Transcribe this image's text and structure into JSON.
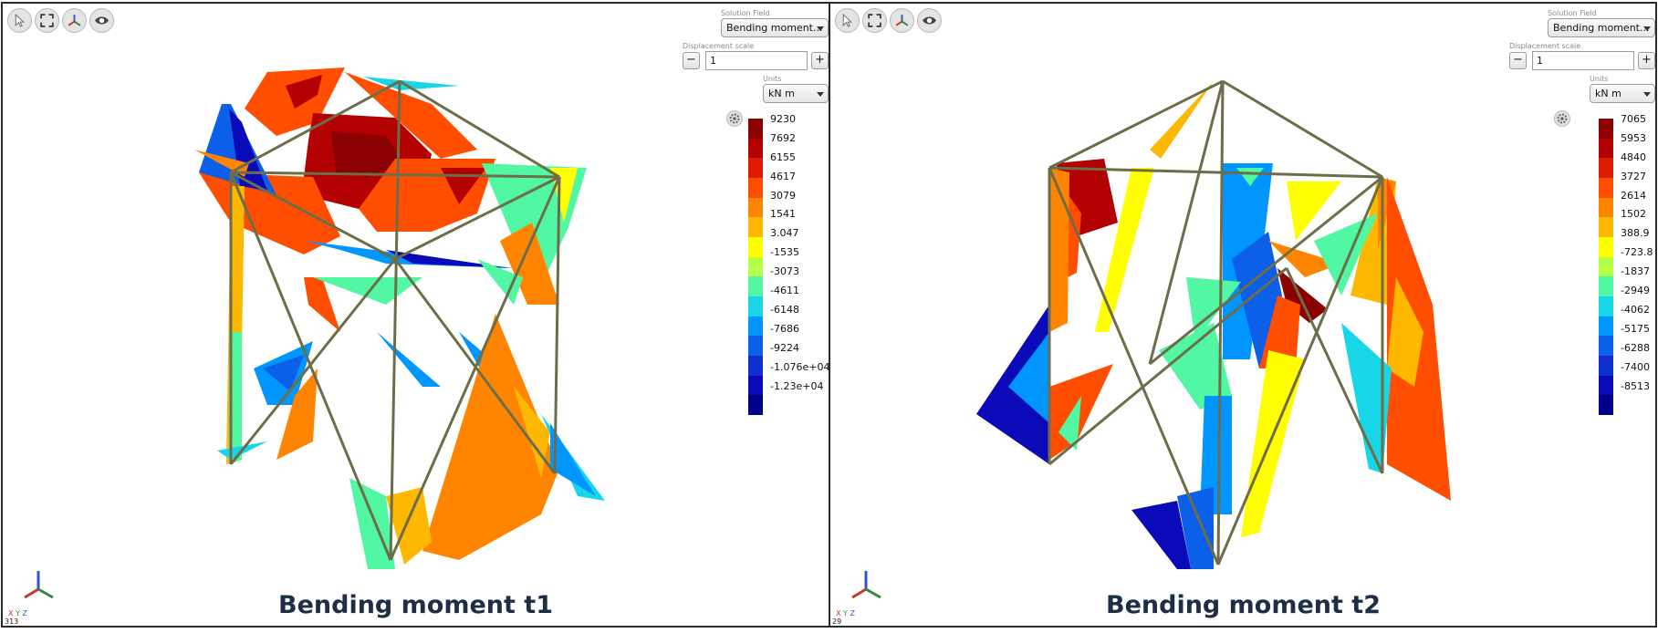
{
  "panes": [
    {
      "caption": "Bending moment t1",
      "solution_field_label": "Solution Field",
      "solution_field_value": "Bending moment...",
      "displacement_label": "Displacement scale",
      "displacement_value": "1",
      "units_label": "Units",
      "units_value": "kN m",
      "minus_label": "−",
      "plus_label": "+",
      "legend": [
        "9230",
        "7692",
        "6155",
        "4617",
        "3079",
        "1541",
        "3.047",
        "-1535",
        "-3073",
        "-4611",
        "-6148",
        "-7686",
        "-9224",
        "-1.076e+04",
        "-1.23e+04"
      ],
      "axis_x": "X",
      "axis_y": "Y",
      "axis_z": "Z",
      "fps": "313"
    },
    {
      "caption": "Bending moment t2",
      "solution_field_label": "Solution Field",
      "solution_field_value": "Bending moment...",
      "displacement_label": "Displacement scale",
      "displacement_value": "1",
      "units_label": "Units",
      "units_value": "kN m",
      "minus_label": "−",
      "plus_label": "+",
      "legend": [
        "7065",
        "5953",
        "4840",
        "3727",
        "2614",
        "1502",
        "388.9",
        "-723.8",
        "-1837",
        "-2949",
        "-4062",
        "-5175",
        "-6288",
        "-7400",
        "-8513"
      ],
      "axis_x": "X",
      "axis_y": "Y",
      "axis_z": "Z",
      "fps": "29"
    }
  ],
  "colormap": [
    "#8b0000",
    "#b30000",
    "#e01b00",
    "#ff4e00",
    "#ff8500",
    "#ffb800",
    "#ffff00",
    "#b6ff47",
    "#52f7a3",
    "#18d5e8",
    "#0096ff",
    "#0b5fe8",
    "#0f2fd1",
    "#0a0ab8",
    "#00008b"
  ],
  "toolbar_icons": [
    "select-cursor-icon",
    "fit-view-icon",
    "axes-triad-icon",
    "visibility-eye-icon"
  ]
}
